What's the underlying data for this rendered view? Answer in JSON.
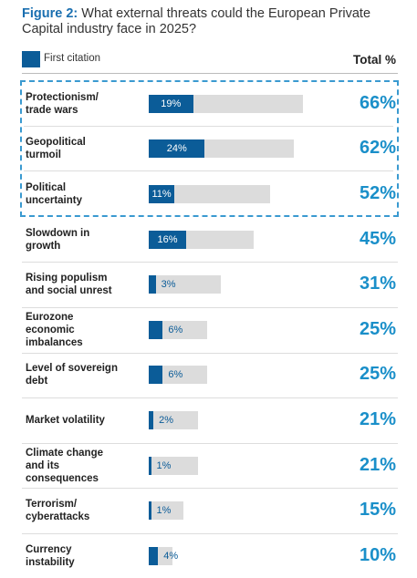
{
  "chart_data": {
    "type": "bar",
    "title_label": "Figure 2:",
    "title": "What external threats could the European Private Capital industry face in 2025?",
    "categories": [
      "Protectionism/\ntrade wars",
      "Geopolitical\nturmoil",
      "Political\nuncertainty",
      "Slowdown in\ngrowth",
      "Rising populism\nand social unrest",
      "Eurozone\neconomic\nimbalances",
      "Level of sovereign\ndebt",
      "Market volatility",
      "Climate change\nand its\nconsequences",
      "Terrorism/\ncyberattacks",
      "Currency\ninstability"
    ],
    "series": [
      {
        "name": "First citation",
        "color": "#0b5c98",
        "values": [
          19,
          24,
          11,
          16,
          3,
          6,
          6,
          2,
          1,
          1,
          4
        ],
        "value_labels": [
          "19%",
          "24%",
          "11%",
          "16%",
          "3%",
          "6%",
          "6%",
          "2%",
          "1%",
          "1%",
          "4%"
        ]
      },
      {
        "name": "Total %",
        "color": "#dcdcdc",
        "values": [
          66,
          62,
          52,
          45,
          31,
          25,
          25,
          21,
          21,
          15,
          10
        ],
        "value_labels": [
          "66%",
          "62%",
          "52%",
          "45%",
          "31%",
          "25%",
          "25%",
          "21%",
          "21%",
          "15%",
          "10%"
        ]
      }
    ],
    "xlim": [
      0,
      100
    ]
  }
}
